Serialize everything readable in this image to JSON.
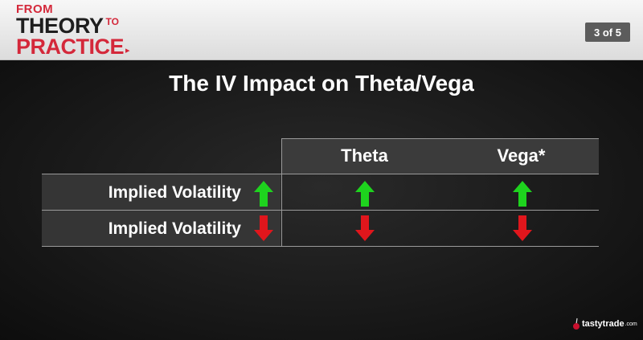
{
  "header": {
    "logo": {
      "from": "FROM",
      "theory": "THEORY",
      "to": "TO",
      "practice": "PRACTICE",
      "play_glyph": "▸"
    },
    "page_indicator": "3 of 5"
  },
  "slide": {
    "title": "The IV Impact on Theta/Vega",
    "columns": [
      "Theta",
      "Vega*"
    ],
    "rows": [
      {
        "label": "Implied Volatility",
        "direction": "up",
        "theta": "up",
        "vega": "up"
      },
      {
        "label": "Implied Volatility",
        "direction": "down",
        "theta": "down",
        "vega": "down"
      }
    ],
    "colors": {
      "up": "#1ed31e",
      "down": "#e0161c"
    },
    "icons": {
      "up": "arrow-up-icon",
      "down": "arrow-down-icon"
    }
  },
  "footer": {
    "brand": "tastytrade",
    "brand_suffix": ".com",
    "icon": "cherry-icon"
  }
}
